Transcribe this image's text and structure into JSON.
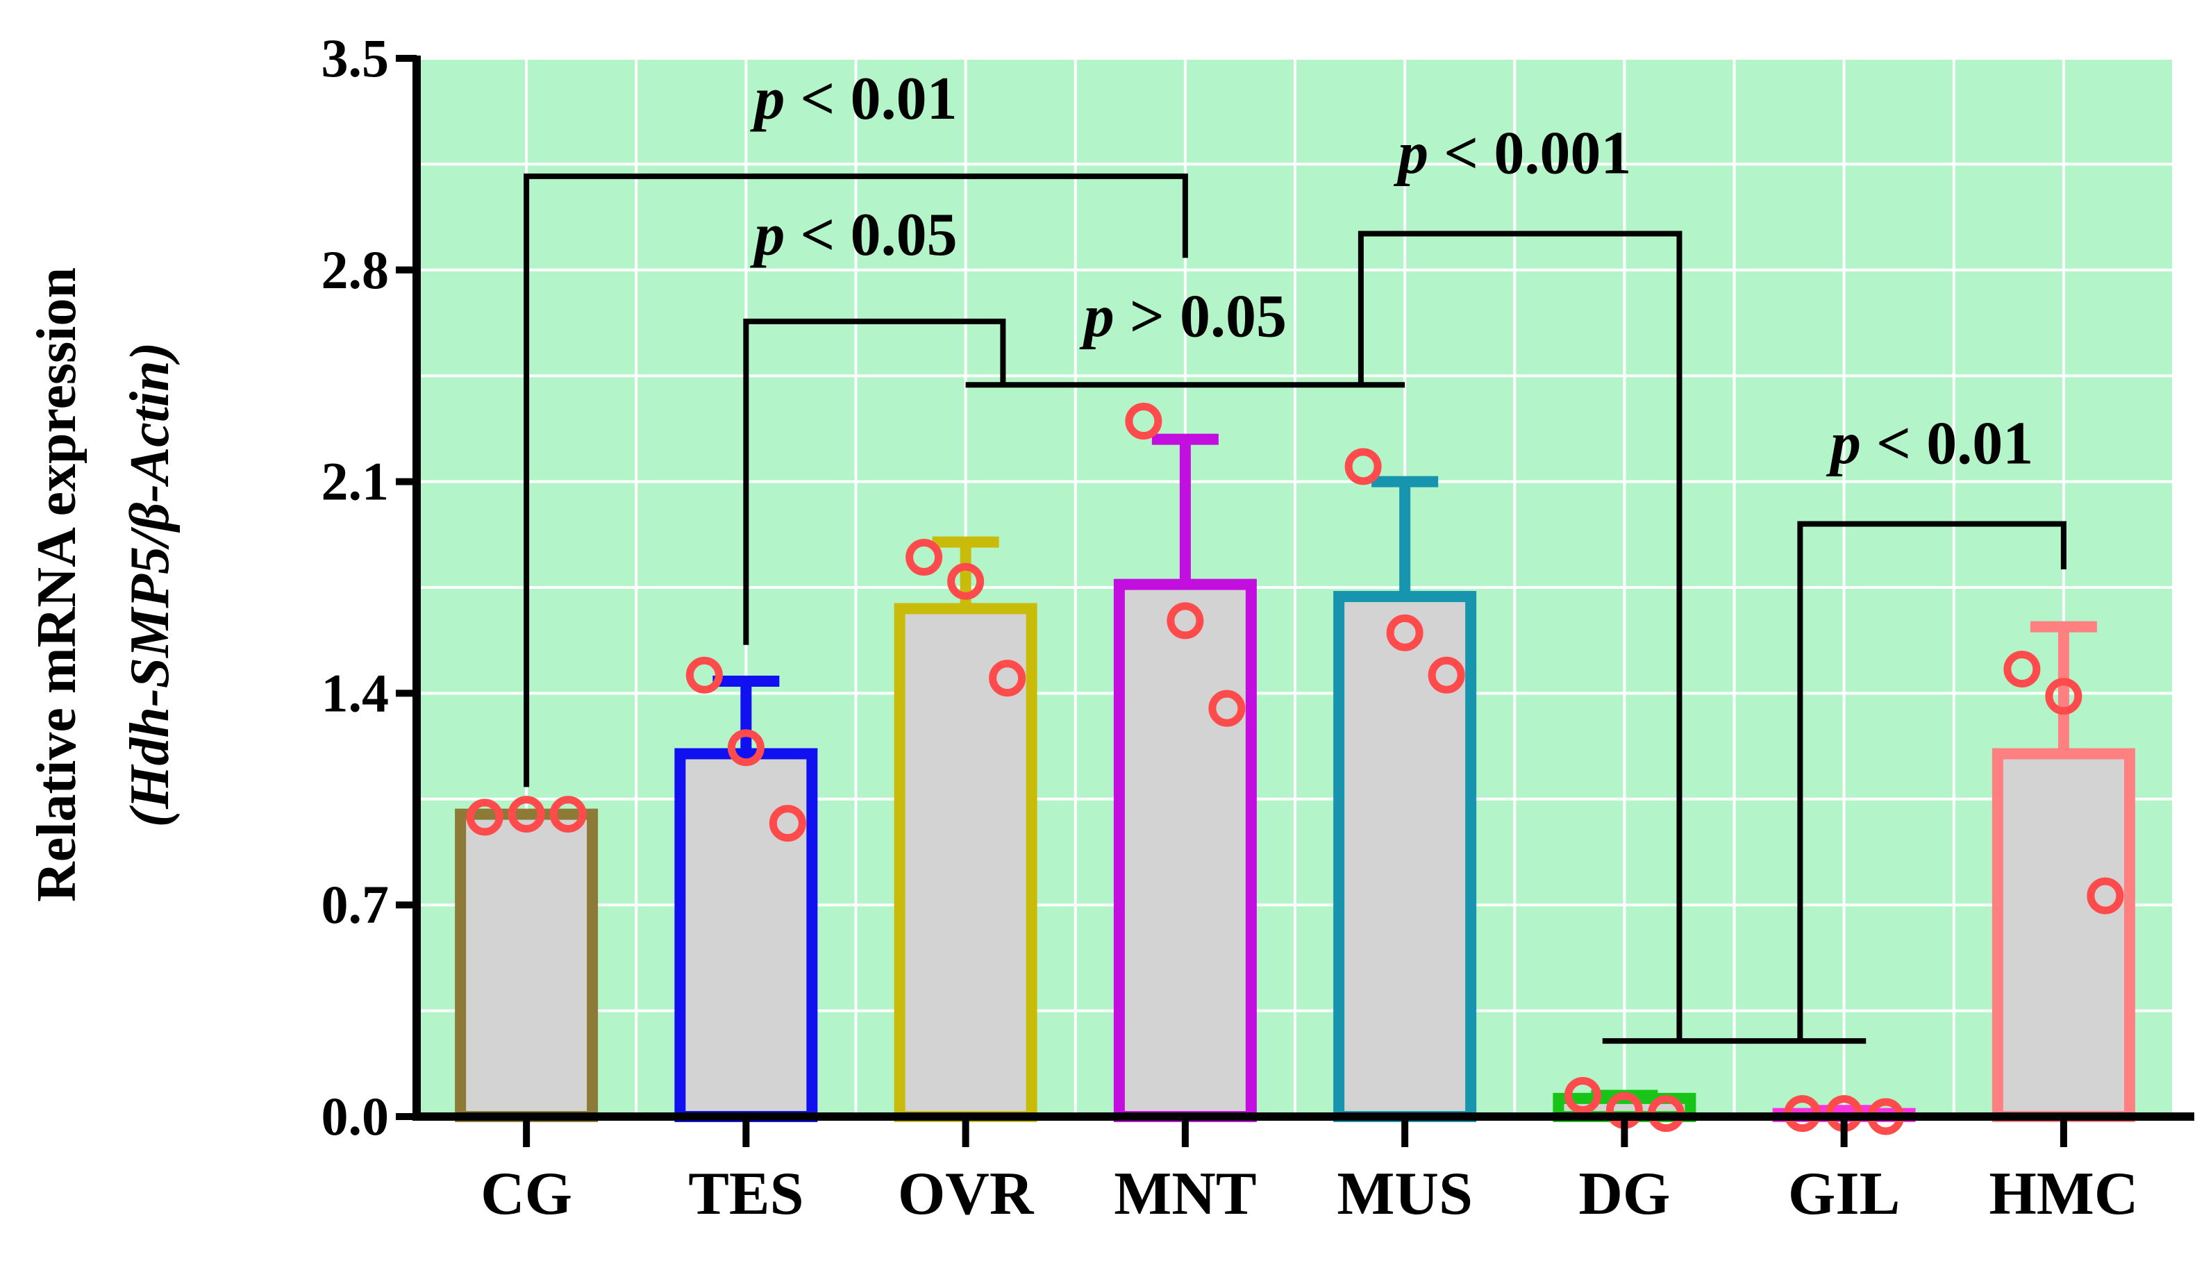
{
  "chart_data": {
    "type": "bar",
    "ylabel_line1": "Relative mRNA expression",
    "ylabel_line2": "(Hdh-SMP5/β-Actin)",
    "ylim": [
      0,
      3.5
    ],
    "yticks": [
      "0.0",
      "0.7",
      "1.4",
      "2.1",
      "2.8",
      "3.5"
    ],
    "grid": true,
    "plot_background": "#b3f5c8",
    "bar_fill": "#d3d3d3",
    "point_color": "#ff4b4b",
    "categories": [
      "CG",
      "TES",
      "OVR",
      "MNT",
      "MUS",
      "DG",
      "GIL",
      "HMC"
    ],
    "colors": [
      "#8c7a36",
      "#1010f0",
      "#c8bb0a",
      "#c20fe0",
      "#1795ae",
      "#18c418",
      "#ff33dd",
      "#ff8080"
    ],
    "values": [
      1.0,
      1.2,
      1.68,
      1.76,
      1.72,
      0.06,
      0.01,
      1.2
    ],
    "errors": [
      0.0,
      0.24,
      0.22,
      0.48,
      0.38,
      0.01,
      0.01,
      0.42
    ],
    "points": [
      [
        0.99,
        1.0,
        1.0
      ],
      [
        1.46,
        1.22,
        0.97
      ],
      [
        1.85,
        1.77,
        1.45
      ],
      [
        2.3,
        1.64,
        1.35
      ],
      [
        2.15,
        1.6,
        1.46
      ],
      [
        0.07,
        0.02,
        0.01
      ],
      [
        0.01,
        0.01,
        0.0
      ],
      [
        1.48,
        1.39,
        0.73
      ]
    ],
    "comparisons": [
      {
        "label_p": "p",
        "label_rest": " < 0.01",
        "left": 0,
        "right": 3,
        "bar_y": 3.11,
        "left_end_y": 1.09,
        "right_end_y": 2.84,
        "label_x_cat": 1.5,
        "label_y": 3.3
      },
      {
        "label_p": "p",
        "label_rest": " < 0.05",
        "left": 1,
        "right": 2.17,
        "bar_y": 2.63,
        "left_end_y": 1.56,
        "right_end_y": 2.42,
        "label_x_cat": 1.5,
        "label_y": 2.85
      },
      {
        "label_p": "p",
        "label_rest": " > 0.05",
        "left": 2,
        "right": 4,
        "bar_y": 2.42,
        "left_end_y": 2.42,
        "right_end_y": 2.42,
        "label_x_cat": 3.0,
        "label_y": 2.58
      },
      {
        "label_p": "p",
        "label_rest": " < 0.001",
        "left": 3.8,
        "right": 5.25,
        "bar_y": 2.92,
        "left_end_y": 2.42,
        "right_end_y": 0.25,
        "label_x_cat": 4.5,
        "label_y": 3.12
      },
      {
        "label_p": "p",
        "label_rest": " < 0.01",
        "left": 5.8,
        "right": 7,
        "bar_y": 1.96,
        "left_end_y": 0.25,
        "right_end_y": 1.81,
        "label_x_cat": 6.4,
        "label_y": 2.16
      },
      {
        "label_p": "",
        "label_rest": "",
        "left": 4.9,
        "right": 6.1,
        "bar_y": 0.25,
        "left_end_y": 0.25,
        "right_end_y": 0.25,
        "label_x_cat": 5.5,
        "label_y": 0.25
      }
    ]
  }
}
